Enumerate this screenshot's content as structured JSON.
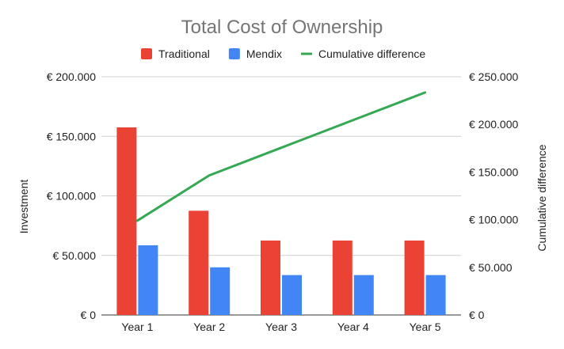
{
  "chart_data": {
    "type": "bar",
    "title": "Total Cost of Ownership",
    "categories": [
      "Year 1",
      "Year 2",
      "Year 3",
      "Year 4",
      "Year 5"
    ],
    "series": [
      {
        "name": "Traditional",
        "type": "bar",
        "axis": "left",
        "color": "#ea4335",
        "values": [
          157500,
          87500,
          62500,
          62500,
          62500
        ]
      },
      {
        "name": "Mendix",
        "type": "bar",
        "axis": "left",
        "color": "#4285f4",
        "values": [
          58500,
          40000,
          33500,
          33500,
          33500
        ]
      },
      {
        "name": "Cumulative difference",
        "type": "line",
        "axis": "right",
        "color": "#34a853",
        "values": [
          99000,
          146500,
          175500,
          204500,
          233500
        ]
      }
    ],
    "ylabel": "Investment",
    "ylabel_right": "Cumulative difference",
    "ylim": [
      0,
      200000
    ],
    "ylim_right": [
      0,
      250000
    ],
    "yticks": [
      "€ 0",
      "€ 50.000",
      "€ 100.000",
      "€ 150.000",
      "€ 200.000"
    ],
    "yticks_right": [
      "€ 0",
      "€ 50.000",
      "€ 100.000",
      "€ 150.000",
      "€ 200.000",
      "€ 250.000"
    ],
    "legend": "top",
    "grid": true
  }
}
